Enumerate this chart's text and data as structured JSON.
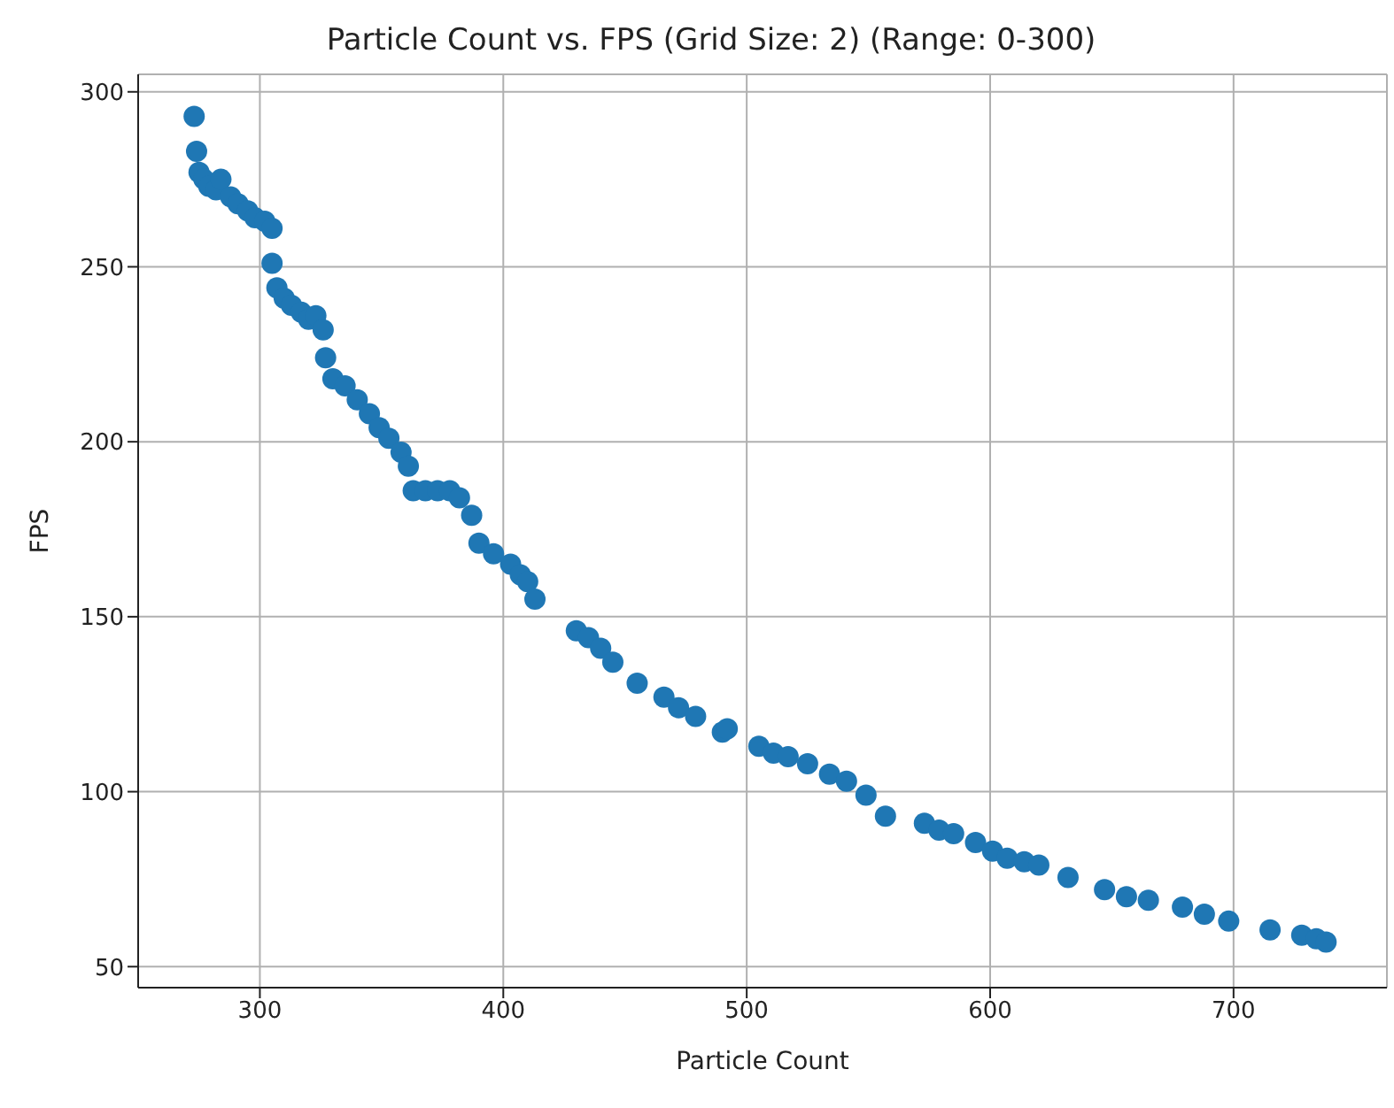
{
  "chart_data": {
    "type": "scatter",
    "title": "Particle Count vs. FPS (Grid Size: 2) (Range: 0-300)",
    "xlabel": "Particle Count",
    "ylabel": "FPS",
    "x": [
      273,
      274,
      275,
      277,
      279,
      282,
      284,
      288,
      291,
      295,
      298,
      302,
      305,
      305,
      307,
      310,
      313,
      317,
      320,
      323,
      326,
      327,
      330,
      335,
      340,
      345,
      349,
      353,
      358,
      361,
      363,
      368,
      373,
      378,
      382,
      387,
      390,
      396,
      403,
      407,
      410,
      413,
      430,
      435,
      440,
      445,
      455,
      466,
      472,
      479,
      490,
      492,
      505,
      511,
      517,
      525,
      534,
      541,
      549,
      557,
      573,
      579,
      585,
      594,
      601,
      607,
      614,
      620,
      632,
      647,
      656,
      665,
      679,
      688,
      698,
      715,
      728,
      734,
      738
    ],
    "values": [
      293,
      283,
      277,
      275,
      273,
      272,
      275,
      270,
      268,
      266,
      264,
      263,
      261,
      251,
      244,
      241,
      239,
      237,
      235,
      236,
      232,
      224,
      218,
      216,
      212,
      208,
      204,
      201,
      197,
      193,
      186,
      186,
      186,
      186,
      184,
      179,
      171,
      168,
      165,
      162,
      160,
      155,
      146,
      144,
      141,
      137,
      131,
      127,
      124,
      121.5,
      117,
      118,
      113,
      111,
      110,
      108,
      105,
      103,
      99,
      93,
      91,
      89,
      88,
      85.5,
      83,
      81,
      80,
      79,
      75.5,
      72,
      70,
      69,
      67,
      65,
      63,
      60.5,
      59,
      58,
      57
    ],
    "color": "#1f77b4",
    "marker": "circle",
    "grid": true,
    "xlim": [
      250,
      763
    ],
    "xticks": [
      300,
      400,
      500,
      600,
      700
    ],
    "ylim": [
      44,
      305
    ],
    "yticks": [
      50,
      100,
      150,
      200,
      250,
      300
    ]
  }
}
